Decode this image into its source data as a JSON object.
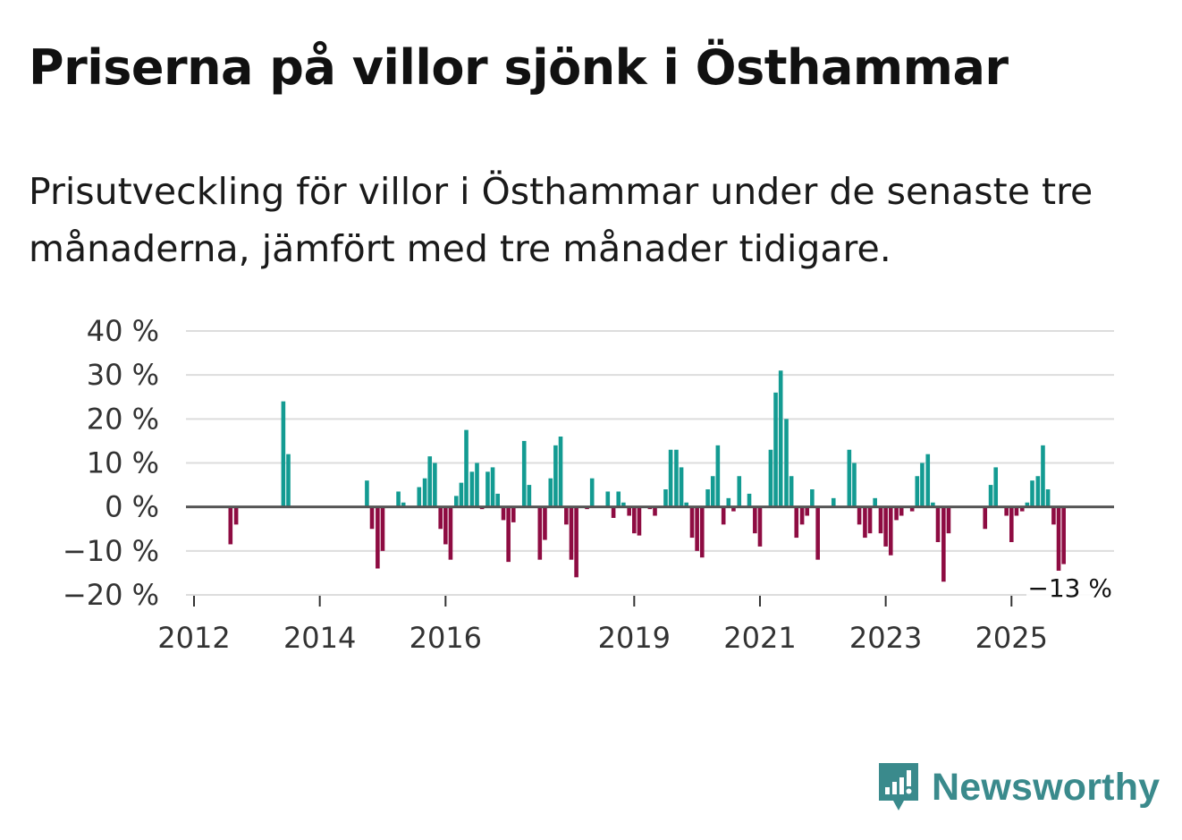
{
  "header": {
    "title": "Priserna på villor sjönk i Östhammar",
    "subtitle": "Prisutveckling för villor i Östhammar under de senaste tre månaderna, jämfört med tre månader tidigare."
  },
  "brand": {
    "name": "Newsworthy",
    "icon": "newsworthy-logo-icon"
  },
  "colors": {
    "positive": "#139b92",
    "negative": "#8e0c42",
    "grid": "#dddddd",
    "baseline": "#555555",
    "brand": "#3a8a8c"
  },
  "chart_data": {
    "type": "bar",
    "title": "Priserna på villor sjönk i Östhammar",
    "xlabel": "",
    "ylabel": "",
    "ylim": [
      -20,
      40
    ],
    "yticks": [
      {
        "value": 40,
        "label": "40 %"
      },
      {
        "value": 30,
        "label": "30 %"
      },
      {
        "value": 20,
        "label": "20 %"
      },
      {
        "value": 10,
        "label": "10 %"
      },
      {
        "value": 0,
        "label": "0 %"
      },
      {
        "value": -10,
        "label": "−10 %"
      },
      {
        "value": -20,
        "label": "−20 %"
      }
    ],
    "x_start_year": 2012,
    "x_end_year": 2025.92,
    "xticks": [
      {
        "year": 2012,
        "label": "2012"
      },
      {
        "year": 2014,
        "label": "2014"
      },
      {
        "year": 2016,
        "label": "2016"
      },
      {
        "year": 2019,
        "label": "2019"
      },
      {
        "year": 2021,
        "label": "2021"
      },
      {
        "year": 2023,
        "label": "2023"
      },
      {
        "year": 2025,
        "label": "2025"
      }
    ],
    "annotation": {
      "label": "−13 %",
      "value": -13
    },
    "series": [
      {
        "name": "Prisutveckling",
        "points": [
          {
            "x": 2012.58,
            "y": -8.5
          },
          {
            "x": 2012.67,
            "y": -4
          },
          {
            "x": 2013.42,
            "y": 24
          },
          {
            "x": 2013.5,
            "y": 12
          },
          {
            "x": 2014.75,
            "y": 6
          },
          {
            "x": 2014.83,
            "y": -5
          },
          {
            "x": 2014.92,
            "y": -14
          },
          {
            "x": 2015.0,
            "y": -10
          },
          {
            "x": 2015.25,
            "y": 3.5
          },
          {
            "x": 2015.33,
            "y": 1
          },
          {
            "x": 2015.58,
            "y": 4.5
          },
          {
            "x": 2015.67,
            "y": 6.5
          },
          {
            "x": 2015.75,
            "y": 11.5
          },
          {
            "x": 2015.83,
            "y": 10
          },
          {
            "x": 2015.92,
            "y": -5
          },
          {
            "x": 2016.0,
            "y": -8.5
          },
          {
            "x": 2016.08,
            "y": -12
          },
          {
            "x": 2016.17,
            "y": 2.5
          },
          {
            "x": 2016.25,
            "y": 5.5
          },
          {
            "x": 2016.33,
            "y": 17.5
          },
          {
            "x": 2016.42,
            "y": 8
          },
          {
            "x": 2016.5,
            "y": 10
          },
          {
            "x": 2016.58,
            "y": -0.5
          },
          {
            "x": 2016.67,
            "y": 8
          },
          {
            "x": 2016.75,
            "y": 9
          },
          {
            "x": 2016.83,
            "y": 3
          },
          {
            "x": 2016.92,
            "y": -3
          },
          {
            "x": 2017.0,
            "y": -12.5
          },
          {
            "x": 2017.08,
            "y": -3.5
          },
          {
            "x": 2017.25,
            "y": 15
          },
          {
            "x": 2017.33,
            "y": 5
          },
          {
            "x": 2017.5,
            "y": -12
          },
          {
            "x": 2017.58,
            "y": -7.5
          },
          {
            "x": 2017.67,
            "y": 6.5
          },
          {
            "x": 2017.75,
            "y": 14
          },
          {
            "x": 2017.83,
            "y": 16
          },
          {
            "x": 2017.92,
            "y": -4
          },
          {
            "x": 2018.0,
            "y": -12
          },
          {
            "x": 2018.08,
            "y": -16
          },
          {
            "x": 2018.25,
            "y": -0.5
          },
          {
            "x": 2018.33,
            "y": 6.5
          },
          {
            "x": 2018.58,
            "y": 3.5
          },
          {
            "x": 2018.67,
            "y": -2.5
          },
          {
            "x": 2018.75,
            "y": 3.5
          },
          {
            "x": 2018.83,
            "y": 1
          },
          {
            "x": 2018.92,
            "y": -2
          },
          {
            "x": 2019.0,
            "y": -6
          },
          {
            "x": 2019.08,
            "y": -6.5
          },
          {
            "x": 2019.25,
            "y": -0.5
          },
          {
            "x": 2019.33,
            "y": -2
          },
          {
            "x": 2019.5,
            "y": 4
          },
          {
            "x": 2019.58,
            "y": 13
          },
          {
            "x": 2019.67,
            "y": 13
          },
          {
            "x": 2019.75,
            "y": 9
          },
          {
            "x": 2019.83,
            "y": 1
          },
          {
            "x": 2019.92,
            "y": -7
          },
          {
            "x": 2020.0,
            "y": -10
          },
          {
            "x": 2020.08,
            "y": -11.5
          },
          {
            "x": 2020.17,
            "y": 4
          },
          {
            "x": 2020.25,
            "y": 7
          },
          {
            "x": 2020.33,
            "y": 14
          },
          {
            "x": 2020.42,
            "y": -4
          },
          {
            "x": 2020.5,
            "y": 2
          },
          {
            "x": 2020.58,
            "y": -1
          },
          {
            "x": 2020.67,
            "y": 7
          },
          {
            "x": 2020.83,
            "y": 3
          },
          {
            "x": 2020.92,
            "y": -6
          },
          {
            "x": 2021.0,
            "y": -9
          },
          {
            "x": 2021.17,
            "y": 13
          },
          {
            "x": 2021.25,
            "y": 26
          },
          {
            "x": 2021.33,
            "y": 31
          },
          {
            "x": 2021.42,
            "y": 20
          },
          {
            "x": 2021.5,
            "y": 7
          },
          {
            "x": 2021.58,
            "y": -7
          },
          {
            "x": 2021.67,
            "y": -4
          },
          {
            "x": 2021.75,
            "y": -2
          },
          {
            "x": 2021.83,
            "y": 4
          },
          {
            "x": 2021.92,
            "y": -12
          },
          {
            "x": 2022.17,
            "y": 2
          },
          {
            "x": 2022.42,
            "y": 13
          },
          {
            "x": 2022.5,
            "y": 10
          },
          {
            "x": 2022.58,
            "y": -4
          },
          {
            "x": 2022.67,
            "y": -7
          },
          {
            "x": 2022.75,
            "y": -6
          },
          {
            "x": 2022.83,
            "y": 2
          },
          {
            "x": 2022.92,
            "y": -6
          },
          {
            "x": 2023.0,
            "y": -9
          },
          {
            "x": 2023.08,
            "y": -11
          },
          {
            "x": 2023.17,
            "y": -3
          },
          {
            "x": 2023.25,
            "y": -2
          },
          {
            "x": 2023.42,
            "y": -1
          },
          {
            "x": 2023.5,
            "y": 7
          },
          {
            "x": 2023.58,
            "y": 10
          },
          {
            "x": 2023.67,
            "y": 12
          },
          {
            "x": 2023.75,
            "y": 1
          },
          {
            "x": 2023.83,
            "y": -8
          },
          {
            "x": 2023.92,
            "y": -17
          },
          {
            "x": 2024.0,
            "y": -6
          },
          {
            "x": 2024.58,
            "y": -5
          },
          {
            "x": 2024.67,
            "y": 5
          },
          {
            "x": 2024.75,
            "y": 9
          },
          {
            "x": 2024.92,
            "y": -2
          },
          {
            "x": 2025.0,
            "y": -8
          },
          {
            "x": 2025.08,
            "y": -2
          },
          {
            "x": 2025.17,
            "y": -1
          },
          {
            "x": 2025.25,
            "y": 1
          },
          {
            "x": 2025.33,
            "y": 6
          },
          {
            "x": 2025.42,
            "y": 7
          },
          {
            "x": 2025.5,
            "y": 14
          },
          {
            "x": 2025.58,
            "y": 4
          },
          {
            "x": 2025.67,
            "y": -4
          },
          {
            "x": 2025.75,
            "y": -14.5
          },
          {
            "x": 2025.83,
            "y": -13
          }
        ]
      }
    ]
  }
}
